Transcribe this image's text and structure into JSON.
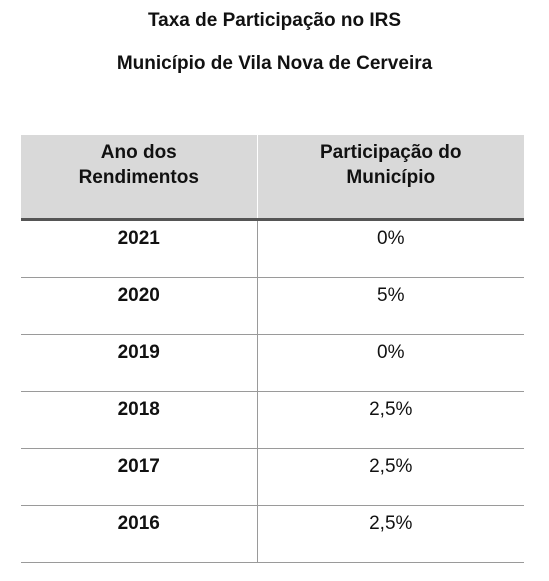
{
  "title": "Taxa de Participação no IRS",
  "subtitle": "Município de Vila Nova de Cerveira",
  "table": {
    "headers": {
      "col1_line1": "Ano dos",
      "col1_line2": "Rendimentos",
      "col2_line1": "Participação do",
      "col2_line2": "Município"
    },
    "rows": [
      {
        "year": "2021",
        "rate": "0%"
      },
      {
        "year": "2020",
        "rate": "5%"
      },
      {
        "year": "2019",
        "rate": "0%"
      },
      {
        "year": "2018",
        "rate": "2,5%"
      },
      {
        "year": "2017",
        "rate": "2,5%"
      },
      {
        "year": "2016",
        "rate": "2,5%"
      }
    ]
  },
  "colors": {
    "header_background": "#d9d9d9",
    "header_rule": "#555555",
    "row_rule": "#9a9a9a"
  }
}
